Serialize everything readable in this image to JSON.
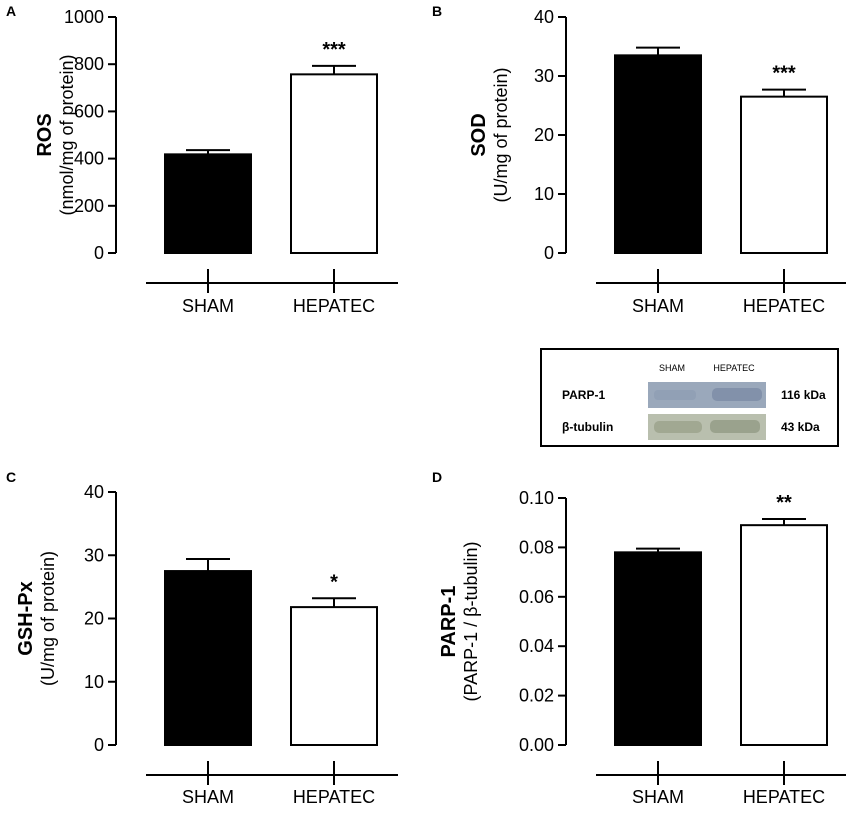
{
  "panels": [
    {
      "id": "A",
      "type": "bar",
      "ylabel": "ROS",
      "ylabel_unit": "(nmol/mg of protein)",
      "ylim": [
        0,
        1000
      ],
      "yticks": [
        "0",
        "200",
        "400",
        "600",
        "800",
        "1000"
      ],
      "ytick_values": [
        0,
        200,
        400,
        600,
        800,
        1000
      ],
      "categories": [
        "SHAM",
        "HEPATEC"
      ],
      "values": [
        418,
        757
      ],
      "errors": [
        18,
        36
      ],
      "significance": [
        "",
        "***"
      ],
      "fills": [
        "#000000",
        "#ffffff"
      ]
    },
    {
      "id": "B",
      "type": "bar",
      "ylabel": "SOD",
      "ylabel_unit": "(U/mg of protein)",
      "ylim": [
        0,
        40
      ],
      "yticks": [
        "0",
        "10",
        "20",
        "30",
        "40"
      ],
      "ytick_values": [
        0,
        10,
        20,
        30,
        40
      ],
      "categories": [
        "SHAM",
        "HEPATEC"
      ],
      "values": [
        33.5,
        26.5
      ],
      "errors": [
        1.3,
        1.2
      ],
      "significance": [
        "",
        "***"
      ],
      "fills": [
        "#000000",
        "#ffffff"
      ]
    },
    {
      "id": "C",
      "type": "bar",
      "ylabel": "GSH-Px",
      "ylabel_unit": "(U/mg of protein)",
      "ylim": [
        0,
        40
      ],
      "yticks": [
        "0",
        "10",
        "20",
        "30",
        "40"
      ],
      "ytick_values": [
        0,
        10,
        20,
        30,
        40
      ],
      "categories": [
        "SHAM",
        "HEPATEC"
      ],
      "values": [
        27.5,
        21.8
      ],
      "errors": [
        1.9,
        1.4
      ],
      "significance": [
        "",
        "*"
      ],
      "fills": [
        "#000000",
        "#ffffff"
      ]
    },
    {
      "id": "D",
      "type": "bar",
      "ylabel": "PARP-1",
      "ylabel_unit": "(PARP-1 / β-tubulin)",
      "ylim": [
        0,
        0.1
      ],
      "yticks": [
        "0.00",
        "0.02",
        "0.04",
        "0.06",
        "0.08",
        "0.10"
      ],
      "ytick_values": [
        0,
        0.02,
        0.04,
        0.06,
        0.08,
        0.1
      ],
      "categories": [
        "SHAM",
        "HEPATEC"
      ],
      "values": [
        0.078,
        0.089
      ],
      "errors": [
        0.0015,
        0.0025
      ],
      "significance": [
        "",
        "**"
      ],
      "fills": [
        "#000000",
        "#ffffff"
      ]
    }
  ],
  "blot": {
    "header": [
      "SHAM",
      "HEPATEC"
    ],
    "rows": [
      {
        "protein": "PARP-1",
        "size": "116 kDa"
      },
      {
        "protein": "β-tubulin",
        "size": "43 kDa"
      }
    ]
  },
  "chart_data": [
    {
      "type": "bar",
      "title": "A",
      "categories": [
        "SHAM",
        "HEPATEC"
      ],
      "values": [
        418,
        757
      ],
      "ylabel": "ROS (nmol/mg of protein)",
      "ylim": [
        0,
        1000
      ]
    },
    {
      "type": "bar",
      "title": "B",
      "categories": [
        "SHAM",
        "HEPATEC"
      ],
      "values": [
        33.5,
        26.5
      ],
      "ylabel": "SOD (U/mg of protein)",
      "ylim": [
        0,
        40
      ]
    },
    {
      "type": "bar",
      "title": "C",
      "categories": [
        "SHAM",
        "HEPATEC"
      ],
      "values": [
        27.5,
        21.8
      ],
      "ylabel": "GSH-Px (U/mg of protein)",
      "ylim": [
        0,
        40
      ]
    },
    {
      "type": "bar",
      "title": "D",
      "categories": [
        "SHAM",
        "HEPATEC"
      ],
      "values": [
        0.078,
        0.089
      ],
      "ylabel": "PARP-1 (PARP-1 / β-tubulin)",
      "ylim": [
        0,
        0.1
      ]
    }
  ]
}
